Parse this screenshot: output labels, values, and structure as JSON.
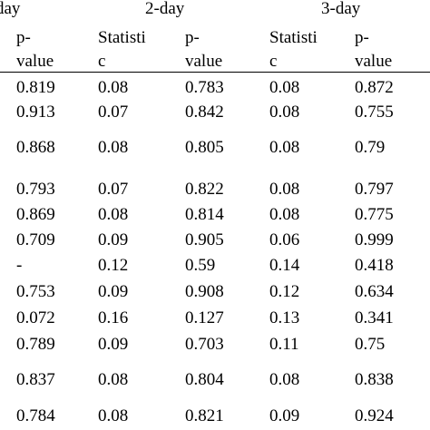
{
  "table": {
    "groups": [
      "day",
      "2-day",
      "3-day"
    ],
    "col_headers": {
      "c0": [
        "p-",
        "value"
      ],
      "c1": [
        "Statisti",
        "c"
      ],
      "c2": [
        "p-",
        "value"
      ],
      "c3": [
        "Statisti",
        "c"
      ],
      "c4": [
        "p-",
        "value"
      ]
    },
    "rows": [
      [
        "0.819",
        "0.08",
        "0.783",
        "0.08",
        "0.872"
      ],
      [
        "0.913",
        "0.07",
        "0.842",
        "0.08",
        "0.755"
      ],
      [
        "0.868",
        "0.08",
        "0.805",
        "0.08",
        "0.79"
      ],
      [
        "0.793",
        "0.07",
        "0.822",
        "0.08",
        "0.797"
      ],
      [
        "0.869",
        "0.08",
        "0.814",
        "0.08",
        "0.775"
      ],
      [
        "0.709",
        "0.09",
        "0.905",
        "0.06",
        "0.999"
      ],
      [
        "-",
        "0.12",
        "0.59",
        "0.14",
        "0.418"
      ],
      [
        "0.753",
        "0.09",
        "0.908",
        "0.12",
        "0.634"
      ],
      [
        "0.072",
        "0.16",
        "0.127",
        "0.13",
        "0.341"
      ],
      [
        "0.789",
        "0.09",
        "0.703",
        "0.11",
        "0.75"
      ],
      [
        "0.837",
        "0.08",
        "0.804",
        "0.08",
        "0.838"
      ],
      [
        "0.784",
        "0.08",
        "0.821",
        "0.09",
        "0.924"
      ]
    ]
  }
}
